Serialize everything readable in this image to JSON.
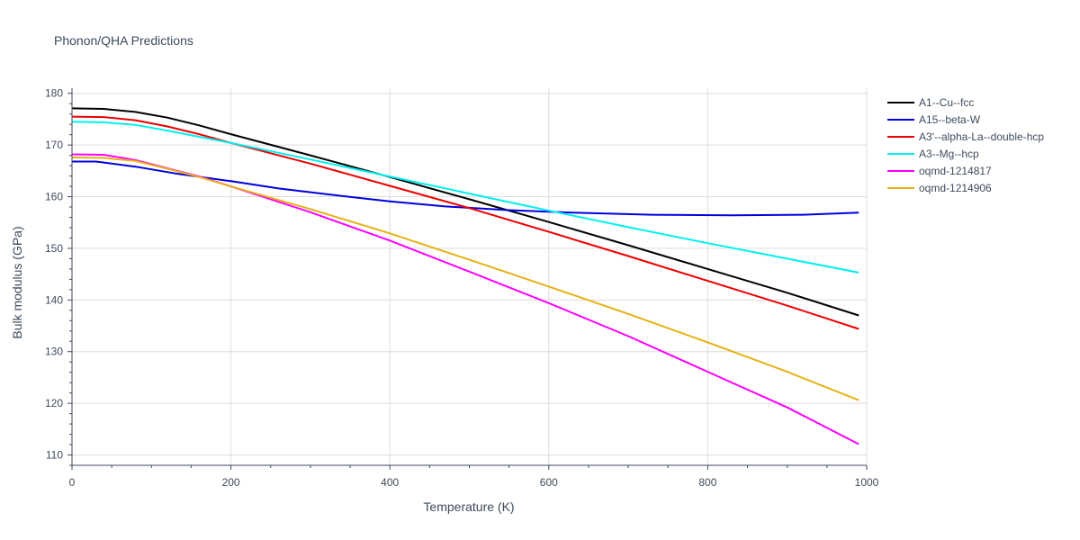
{
  "chart_data": {
    "type": "line",
    "title": "Phonon/QHA Predictions",
    "xlabel": "Temperature (K)",
    "ylabel": "Bulk modulus (GPa)",
    "xlim": [
      0,
      1000
    ],
    "ylim": [
      108,
      181
    ],
    "xticks": [
      0,
      200,
      400,
      600,
      800,
      1000
    ],
    "yticks": [
      110,
      120,
      130,
      140,
      150,
      160,
      170,
      180
    ],
    "grid": true,
    "legend_position": "top-right",
    "series": [
      {
        "name": "A1--Cu--fcc",
        "color": "#000000",
        "x": [
          0,
          40,
          80,
          120,
          160,
          200,
          300,
          400,
          500,
          600,
          700,
          800,
          900,
          990
        ],
        "y": [
          177.1,
          177.0,
          176.4,
          175.3,
          173.8,
          172.1,
          168.0,
          163.8,
          159.5,
          155.1,
          150.6,
          146.0,
          141.4,
          137.0
        ]
      },
      {
        "name": "A15--beta-W",
        "color": "#0000dd",
        "x": [
          0,
          30,
          80,
          130,
          200,
          260,
          330,
          400,
          470,
          550,
          630,
          730,
          830,
          920,
          990
        ],
        "y": [
          166.8,
          166.8,
          165.8,
          164.5,
          163.0,
          161.6,
          160.3,
          159.1,
          158.1,
          157.4,
          156.9,
          156.5,
          156.4,
          156.5,
          156.9
        ]
      },
      {
        "name": "A3'--alpha-La--double-hcp",
        "color": "#ee0000",
        "x": [
          0,
          40,
          80,
          120,
          160,
          200,
          300,
          400,
          500,
          600,
          700,
          800,
          900,
          990
        ],
        "y": [
          175.5,
          175.4,
          174.8,
          173.6,
          172.1,
          170.4,
          166.4,
          162.1,
          157.8,
          153.2,
          148.5,
          143.7,
          138.9,
          134.4
        ]
      },
      {
        "name": "A3--Mg--hcp",
        "color": "#00f0f0",
        "x": [
          0,
          40,
          80,
          120,
          160,
          200,
          300,
          400,
          500,
          600,
          700,
          800,
          900,
          990
        ],
        "y": [
          174.5,
          174.4,
          173.9,
          172.8,
          171.6,
          170.4,
          167.2,
          163.9,
          160.6,
          157.3,
          154.1,
          151.0,
          148.0,
          145.3
        ]
      },
      {
        "name": "oqmd-1214817",
        "color": "#ff00ff",
        "x": [
          0,
          40,
          80,
          120,
          160,
          200,
          300,
          400,
          500,
          600,
          700,
          800,
          900,
          990
        ],
        "y": [
          168.2,
          168.1,
          167.1,
          165.5,
          163.9,
          162.0,
          157.0,
          151.5,
          145.5,
          139.4,
          133.0,
          126.1,
          119.2,
          112.1
        ]
      },
      {
        "name": "oqmd-1214906",
        "color": "#e6b117",
        "x": [
          0,
          40,
          80,
          120,
          160,
          200,
          300,
          400,
          500,
          600,
          700,
          800,
          900,
          990
        ],
        "y": [
          167.6,
          167.5,
          166.9,
          165.4,
          163.8,
          162.0,
          157.6,
          152.9,
          147.8,
          142.6,
          137.3,
          131.8,
          126.1,
          120.6
        ]
      }
    ]
  }
}
